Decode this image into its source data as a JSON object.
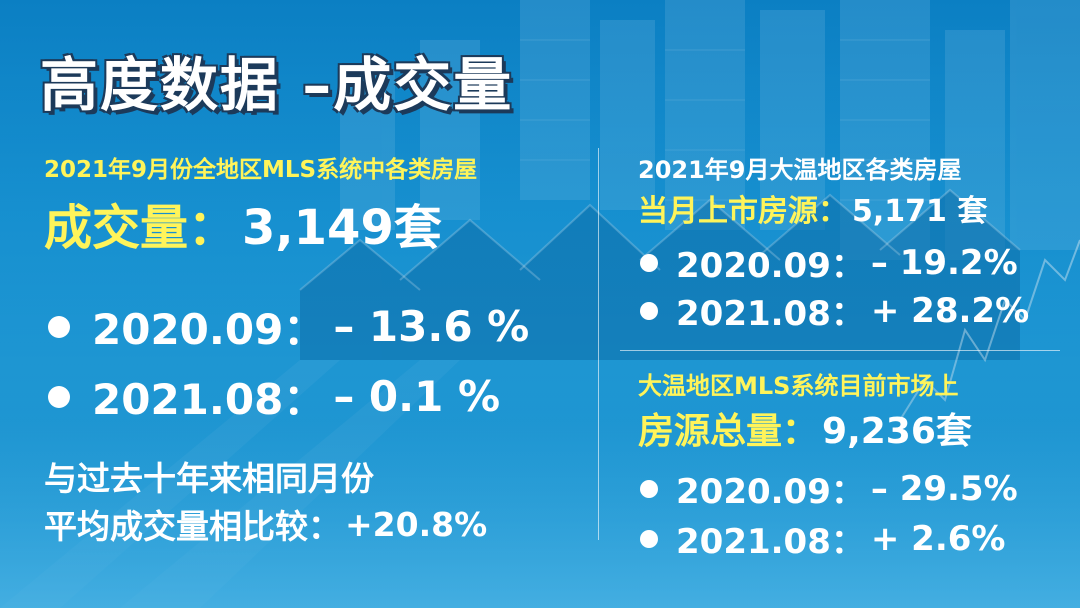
{
  "title": "高度数据 –成交量",
  "left": {
    "subtitle": "2021年9月份全地区MLS系统中各类房屋",
    "headline_label": "成交量：",
    "headline_value": "3,149套",
    "bullets": [
      {
        "period": "2020.09：",
        "change": "– 13.6 %"
      },
      {
        "period": "2021.08：",
        "change": "– 0.1 %"
      }
    ],
    "compare_line1": "与过去十年来相同月份",
    "compare_line2_label": "平均成交量相比较：",
    "compare_line2_value": "+20.8%"
  },
  "right_top": {
    "subtitle": "2021年9月大温地区各类房屋",
    "headline_label": "当月上市房源：",
    "headline_value": "5,171 套",
    "bullets": [
      {
        "period": "2020.09：",
        "change": "– 19.2%"
      },
      {
        "period": "2021.08：",
        "change": "+ 28.2%"
      }
    ]
  },
  "right_bottom": {
    "subtitle": "大温地区MLS系统目前市场上",
    "headline_label": "房源总量：",
    "headline_value": "9,236套",
    "bullets": [
      {
        "period": "2020.09：",
        "change": "– 29.5%"
      },
      {
        "period": "2021.08：",
        "change": "+ 2.6%"
      }
    ]
  },
  "colors": {
    "background": "#1894d4",
    "highlight_yellow": "#fff45a",
    "text_white": "#ffffff",
    "title_outline": "#1c3a5a"
  },
  "icons": {
    "bullet": "bullet-dot-icon"
  }
}
